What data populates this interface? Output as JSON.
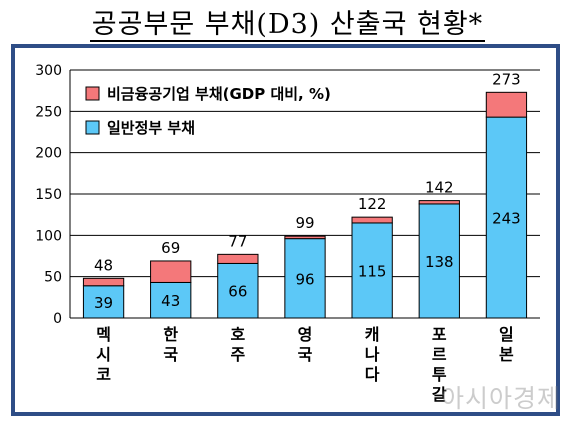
{
  "title": "공공부문 부채(D3) 산출국 현황*",
  "watermark": "아시아경제",
  "colors": {
    "general": "#5cc8f7",
    "nonfinancial": "#f4787a",
    "frame": "#2e4d86",
    "grid": "#000000"
  },
  "chart_data": {
    "type": "bar",
    "stacked": true,
    "title": "공공부문 부채(D3) 산출국 현황*",
    "categories": [
      "멕시코",
      "한국",
      "호주",
      "영국",
      "캐나다",
      "포르투갈",
      "일본"
    ],
    "series": [
      {
        "name": "일반정부 부채",
        "values": [
          39,
          43,
          66,
          96,
          115,
          138,
          243
        ]
      },
      {
        "name": "비금융공기업 부채(GDP 대비, %)",
        "values": [
          9,
          26,
          11,
          3,
          7,
          4,
          30
        ]
      }
    ],
    "totals": [
      48,
      69,
      77,
      99,
      122,
      142,
      273
    ],
    "ylim": [
      0,
      300
    ],
    "yticks": [
      0,
      50,
      100,
      150,
      200,
      250,
      300
    ],
    "grid": true,
    "legend_position": "top-left"
  }
}
